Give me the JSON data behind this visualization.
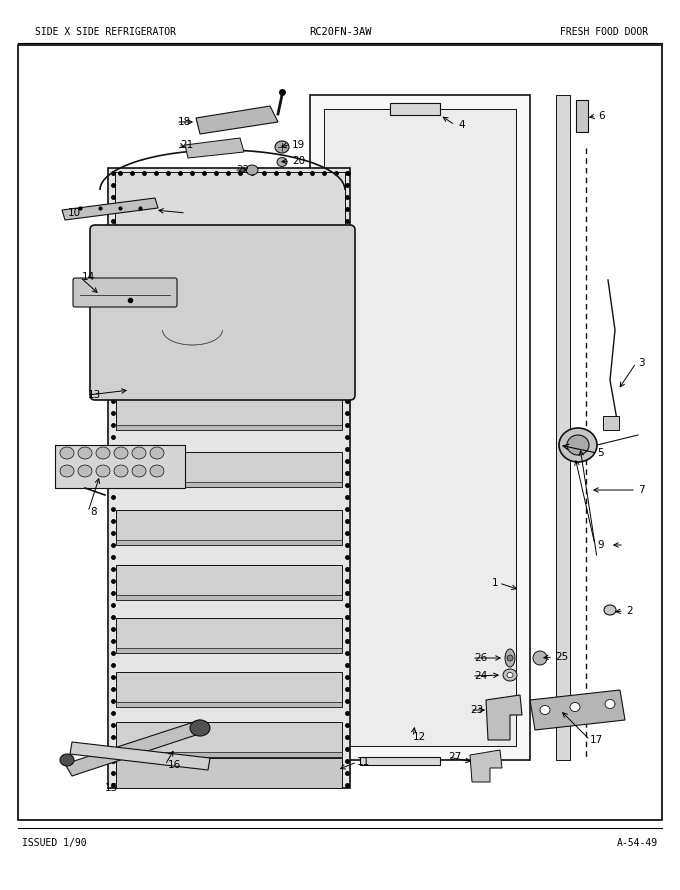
{
  "title_left": "SIDE X SIDE REFRIGERATOR",
  "title_center": "RC20FN-3AW",
  "title_right": "FRESH FOOD DOOR",
  "footer_left": "ISSUED 1/90",
  "footer_right": "A-54-49",
  "bg_color": "#ffffff",
  "fig_width": 6.8,
  "fig_height": 8.9,
  "dpi": 100
}
